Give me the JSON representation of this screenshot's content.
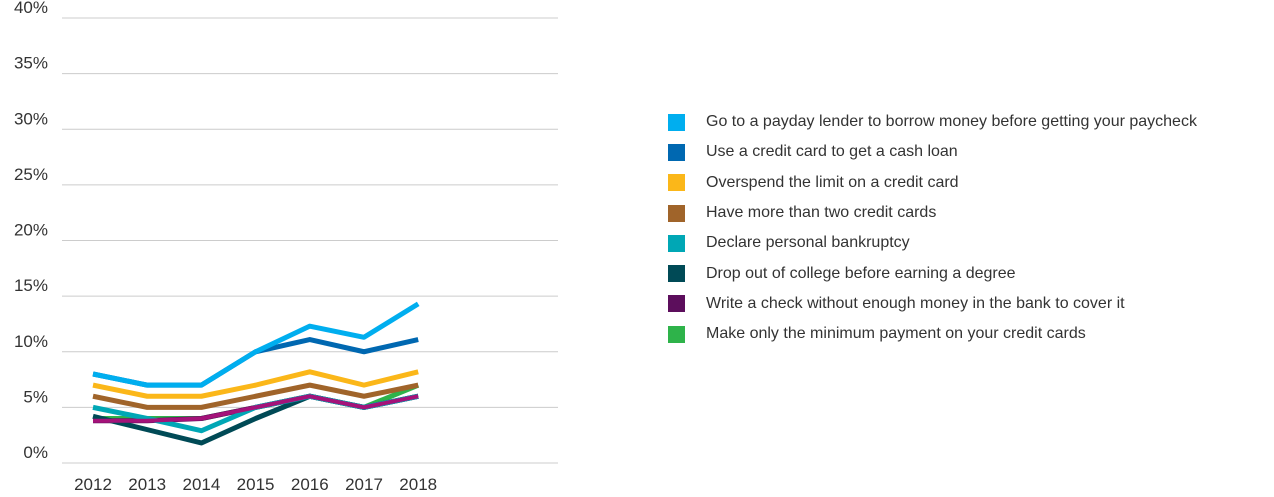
{
  "chart_data": {
    "type": "line",
    "title": "",
    "xlabel": "",
    "ylabel": "",
    "categories": [
      "2012",
      "2013",
      "2014",
      "2015",
      "2016",
      "2017",
      "2018"
    ],
    "ylim": [
      0,
      40
    ],
    "y_ticks": [
      0,
      5,
      10,
      15,
      20,
      25,
      30,
      35,
      40
    ],
    "y_tick_labels": [
      "0%",
      "5%",
      "10%",
      "15%",
      "20%",
      "25%",
      "30%",
      "35%",
      "40%"
    ],
    "grid": true,
    "legend_position": "right",
    "series": [
      {
        "name": "Go to a payday lender to borrow money before getting your paycheck",
        "color": "#00aeef",
        "values": [
          8,
          7,
          7,
          10,
          12.3,
          11.3,
          14.3
        ]
      },
      {
        "name": "Use a credit card to get a cash loan",
        "color": "#0068b1",
        "values": [
          8,
          7,
          7,
          10,
          11.1,
          10,
          11.1
        ]
      },
      {
        "name": "Overspend the limit on a credit card",
        "color": "#fbb719",
        "values": [
          7,
          6,
          6,
          7,
          8.2,
          7,
          8.2
        ]
      },
      {
        "name": "Have more than two credit cards",
        "color": "#a0642a",
        "values": [
          6,
          5,
          5,
          6,
          7,
          6,
          7
        ]
      },
      {
        "name": "Declare personal bankruptcy",
        "color": "#00a7b5",
        "values": [
          5,
          4,
          2.9,
          5,
          6,
          5,
          6
        ]
      },
      {
        "name": "Drop out of college before earning a degree",
        "color": "#004a56",
        "values": [
          4.2,
          3,
          1.8,
          4,
          6,
          5,
          6
        ]
      },
      {
        "name": "Write a check without enough money in the bank to cover it",
        "color": "#5c0e5c",
        "values": [
          3.8,
          3.8,
          4,
          5,
          6,
          5,
          6
        ]
      },
      {
        "name": "Make only the minimum payment on your credit cards",
        "color": "#2eb34a",
        "values": [
          4,
          4,
          4,
          5,
          6,
          5,
          7
        ]
      }
    ],
    "highlight_series": {
      "color": "#a51279",
      "values": [
        3.8,
        3.8,
        4,
        5,
        6,
        5,
        6
      ]
    }
  }
}
